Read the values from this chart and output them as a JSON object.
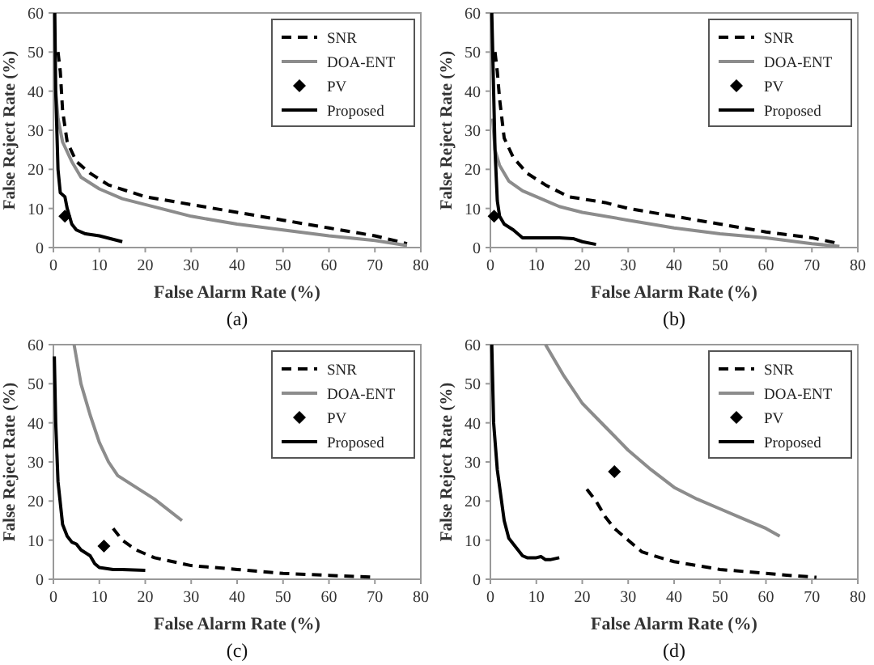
{
  "chart_data": [
    {
      "type": "line",
      "title": "(a)",
      "xlabel": "False Alarm Rate (%)",
      "ylabel": "False Reject Rate (%)",
      "xlim": [
        0,
        80
      ],
      "ylim": [
        0,
        60
      ],
      "xticks": [
        0,
        10,
        20,
        30,
        40,
        50,
        60,
        70,
        80
      ],
      "yticks": [
        0,
        10,
        20,
        30,
        40,
        50,
        60
      ],
      "grid": false,
      "legend": "top right",
      "series": [
        {
          "name": "SNR",
          "type": "line",
          "line_style": "dashed",
          "color": "#000000",
          "x": [
            1,
            1.5,
            2,
            3,
            5,
            8,
            12,
            20,
            30,
            40,
            50,
            60,
            70,
            77
          ],
          "values": [
            50,
            45,
            35,
            27,
            22,
            19,
            16,
            13,
            11,
            9,
            7,
            5,
            3,
            1
          ]
        },
        {
          "name": "DOA-ENT",
          "type": "line",
          "line_style": "solid",
          "color": "#8c8c8c",
          "x": [
            0.5,
            1,
            2,
            4,
            6,
            10,
            15,
            20,
            30,
            40,
            50,
            60,
            70,
            77
          ],
          "values": [
            40,
            33,
            27,
            22,
            18,
            15,
            12.5,
            11,
            8,
            6,
            4.5,
            3,
            1.8,
            0.5
          ]
        },
        {
          "name": "PV",
          "type": "scatter",
          "marker": "diamond",
          "color": "#000000",
          "x": [
            2.5
          ],
          "values": [
            8
          ]
        },
        {
          "name": "Proposed",
          "type": "line",
          "line_style": "solid",
          "color": "#000000",
          "x": [
            0.3,
            0.5,
            1,
            1.5,
            2.5,
            3,
            4,
            5,
            7,
            10,
            15
          ],
          "values": [
            60,
            40,
            20,
            14,
            13,
            10,
            6,
            4.5,
            3.5,
            3,
            1.5
          ]
        }
      ]
    },
    {
      "type": "line",
      "title": "(b)",
      "xlabel": "False Alarm Rate (%)",
      "ylabel": "False Reject Rate (%)",
      "xlim": [
        0,
        80
      ],
      "ylim": [
        0,
        60
      ],
      "xticks": [
        0,
        10,
        20,
        30,
        40,
        50,
        60,
        70,
        80
      ],
      "yticks": [
        0,
        10,
        20,
        30,
        40,
        50,
        60
      ],
      "grid": false,
      "legend": "top right",
      "series": [
        {
          "name": "SNR",
          "type": "line",
          "line_style": "dashed",
          "color": "#000000",
          "x": [
            1,
            1.5,
            2,
            3,
            5,
            8,
            12,
            17,
            25,
            30,
            40,
            50,
            60,
            70,
            76
          ],
          "values": [
            50,
            45,
            38,
            28,
            23,
            19,
            16,
            13,
            11.5,
            10,
            8,
            6,
            4,
            2.5,
            1
          ]
        },
        {
          "name": "DOA-ENT",
          "type": "line",
          "line_style": "solid",
          "color": "#8c8c8c",
          "x": [
            0.5,
            1,
            2,
            4,
            7,
            10,
            15,
            20,
            30,
            40,
            50,
            60,
            70,
            76
          ],
          "values": [
            33,
            25,
            21,
            17,
            14.5,
            13,
            10.5,
            9,
            7,
            5,
            3.5,
            2.5,
            1,
            0.3
          ]
        },
        {
          "name": "PV",
          "type": "scatter",
          "marker": "diamond",
          "color": "#000000",
          "x": [
            0.8
          ],
          "values": [
            8
          ]
        },
        {
          "name": "Proposed",
          "type": "line",
          "line_style": "solid",
          "color": "#000000",
          "x": [
            0.3,
            0.7,
            1,
            1.5,
            2,
            3,
            5,
            7,
            10,
            15,
            18,
            20,
            23
          ],
          "values": [
            60,
            40,
            25,
            12,
            8,
            6,
            4.5,
            2.5,
            2.5,
            2.5,
            2.3,
            1.5,
            0.8
          ]
        }
      ]
    },
    {
      "type": "line",
      "title": "(c)",
      "xlabel": "False Alarm Rate (%)",
      "ylabel": "False Reject Rate (%)",
      "xlim": [
        0,
        80
      ],
      "ylim": [
        0,
        60
      ],
      "xticks": [
        0,
        10,
        20,
        30,
        40,
        50,
        60,
        70,
        80
      ],
      "yticks": [
        0,
        10,
        20,
        30,
        40,
        50,
        60
      ],
      "grid": false,
      "legend": "top right",
      "series": [
        {
          "name": "SNR",
          "type": "line",
          "line_style": "dashed",
          "color": "#000000",
          "x": [
            13,
            15,
            18,
            22,
            30,
            40,
            50,
            60,
            70
          ],
          "values": [
            13,
            10,
            7.5,
            5.5,
            3.5,
            2.5,
            1.5,
            1,
            0.5
          ]
        },
        {
          "name": "DOA-ENT",
          "type": "line",
          "line_style": "solid",
          "color": "#8c8c8c",
          "x": [
            4.5,
            6,
            8,
            10,
            12,
            14,
            18,
            22,
            28
          ],
          "values": [
            60,
            50,
            42,
            35,
            30,
            26.5,
            23.5,
            20.5,
            15
          ]
        },
        {
          "name": "PV",
          "type": "scatter",
          "marker": "diamond",
          "color": "#000000",
          "x": [
            11
          ],
          "values": [
            8.5
          ]
        },
        {
          "name": "Proposed",
          "type": "line",
          "line_style": "solid",
          "color": "#000000",
          "x": [
            0.2,
            0.5,
            1,
            2,
            3,
            4,
            5,
            6,
            8,
            9,
            10,
            13,
            15,
            20
          ],
          "values": [
            57,
            40,
            25,
            14,
            11,
            9.5,
            9,
            7.5,
            6,
            4,
            3,
            2.5,
            2.5,
            2.3
          ]
        }
      ]
    },
    {
      "type": "line",
      "title": "(d)",
      "xlabel": "False Alarm Rate (%)",
      "ylabel": "False Reject Rate (%)",
      "xlim": [
        0,
        80
      ],
      "ylim": [
        0,
        60
      ],
      "xticks": [
        0,
        10,
        20,
        30,
        40,
        50,
        60,
        70,
        80
      ],
      "yticks": [
        0,
        10,
        20,
        30,
        40,
        50,
        60
      ],
      "grid": false,
      "legend": "top right",
      "series": [
        {
          "name": "SNR",
          "type": "line",
          "line_style": "dashed",
          "color": "#000000",
          "x": [
            21,
            23,
            25,
            27,
            30,
            33,
            37,
            40,
            50,
            60,
            65,
            71
          ],
          "values": [
            23,
            20,
            16,
            13,
            10,
            7,
            5.5,
            4.5,
            2.5,
            1.5,
            1,
            0.5
          ]
        },
        {
          "name": "DOA-ENT",
          "type": "line",
          "line_style": "solid",
          "color": "#8c8c8c",
          "x": [
            12,
            16,
            20,
            25,
            30,
            35,
            40,
            45,
            50,
            55,
            60,
            63
          ],
          "values": [
            60,
            52,
            45,
            39,
            33,
            28,
            23.5,
            20.5,
            18,
            15.5,
            13,
            11
          ]
        },
        {
          "name": "PV",
          "type": "scatter",
          "marker": "diamond",
          "color": "#000000",
          "x": [
            27
          ],
          "values": [
            27.5
          ]
        },
        {
          "name": "Proposed",
          "type": "line",
          "line_style": "solid",
          "color": "#000000",
          "x": [
            0.3,
            0.7,
            1.5,
            3,
            4,
            6,
            7,
            8,
            10,
            11,
            12,
            13,
            15
          ],
          "values": [
            60,
            40,
            28,
            15,
            10.5,
            7.5,
            6,
            5.5,
            5.5,
            5.8,
            5,
            5,
            5.5
          ]
        }
      ]
    }
  ]
}
